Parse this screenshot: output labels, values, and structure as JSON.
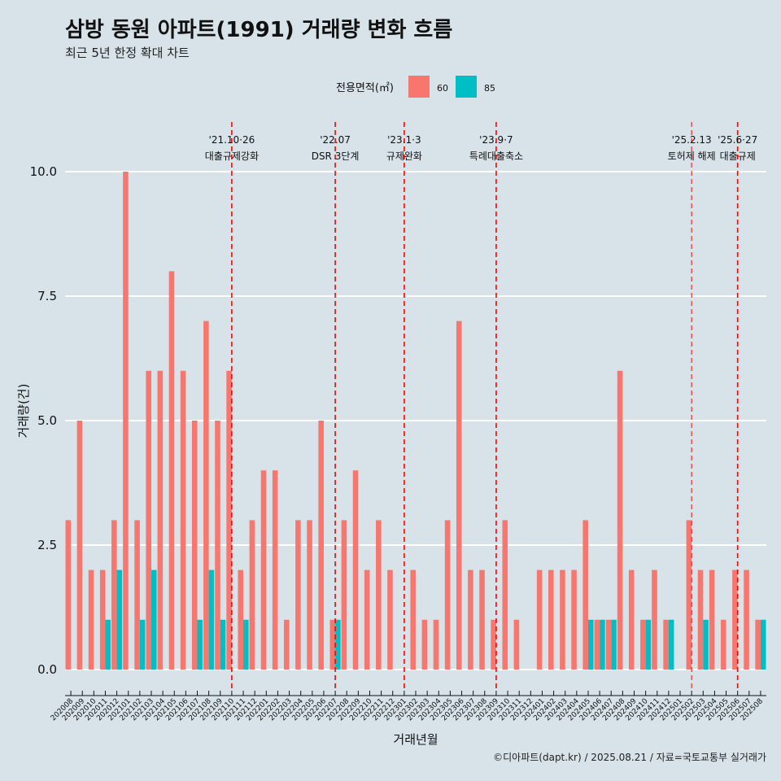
{
  "title": "삼방 동원 아파트(1991) 거래량 변화 흐름",
  "subtitle": "최근 5년 한정 확대 차트",
  "caption": "©디아파트(dapt.kr) / 2025.08.21 / 자료=국토교통부 실거래가",
  "colors": {
    "background": "#d7e3e9",
    "s60": "#f8766d",
    "s85": "#00bfc4",
    "vline": "#ff0000"
  },
  "chart_data": {
    "type": "bar",
    "xlabel": "거래년월",
    "ylabel": "거래량(건)",
    "ylim": [
      0,
      10.5
    ],
    "yticks": [
      "0.0",
      "2.5",
      "5.0",
      "7.5",
      "10.0"
    ],
    "legend": {
      "title": "전용면적(㎡)",
      "position": "top",
      "entries": [
        "60",
        "85"
      ]
    },
    "categories": [
      "202008",
      "202009",
      "202010",
      "202011",
      "202012",
      "202101",
      "202102",
      "202103",
      "202104",
      "202105",
      "202106",
      "202107",
      "202108",
      "202109",
      "202110",
      "202111",
      "202112",
      "202201",
      "202202",
      "202203",
      "202204",
      "202205",
      "202206",
      "202207",
      "202208",
      "202209",
      "202210",
      "202211",
      "202212",
      "202301",
      "202302",
      "202303",
      "202304",
      "202305",
      "202306",
      "202307",
      "202308",
      "202309",
      "202310",
      "202311",
      "202312",
      "202401",
      "202402",
      "202403",
      "202404",
      "202405",
      "202406",
      "202407",
      "202408",
      "202409",
      "202410",
      "202411",
      "202412",
      "202501",
      "202502",
      "202503",
      "202504",
      "202505",
      "202506",
      "202507",
      "202508"
    ],
    "series": [
      {
        "name": "60",
        "values": [
          3,
          5,
          2,
          2,
          3,
          10,
          3,
          6,
          6,
          8,
          6,
          5,
          7,
          5,
          6,
          2,
          3,
          4,
          4,
          1,
          3,
          3,
          5,
          1,
          3,
          4,
          2,
          3,
          2,
          0,
          2,
          1,
          1,
          3,
          7,
          2,
          2,
          1,
          3,
          1,
          0,
          2,
          2,
          2,
          2,
          3,
          1,
          1,
          6,
          2,
          1,
          2,
          1,
          0,
          3,
          2,
          2,
          1,
          2,
          2,
          1
        ]
      },
      {
        "name": "85",
        "values": [
          0,
          0,
          0,
          1,
          2,
          0,
          1,
          2,
          0,
          0,
          0,
          1,
          2,
          1,
          0,
          1,
          0,
          0,
          0,
          0,
          0,
          0,
          0,
          1,
          0,
          0,
          0,
          0,
          0,
          0,
          0,
          0,
          0,
          0,
          0,
          0,
          0,
          0,
          0,
          0,
          0,
          0,
          0,
          0,
          0,
          1,
          1,
          1,
          0,
          0,
          1,
          0,
          1,
          0,
          0,
          1,
          0,
          0,
          0,
          0,
          1
        ]
      }
    ],
    "annotations": [
      {
        "month": "202110",
        "line1": "'21.10·26",
        "line2": "대출규제강화"
      },
      {
        "month": "202207",
        "line1": "'22.07",
        "line2": "DSR 3단계"
      },
      {
        "month": "202301",
        "line1": "'23.1·3",
        "line2": "규제완화"
      },
      {
        "month": "202309",
        "line1": "'23.9·7",
        "line2": "특례대출축소"
      },
      {
        "month": "202502",
        "line1": "'25.2.13",
        "line2": "토허제 해제"
      },
      {
        "month": "202506",
        "line1": "'25.6·27",
        "line2": "대출규제"
      }
    ]
  }
}
